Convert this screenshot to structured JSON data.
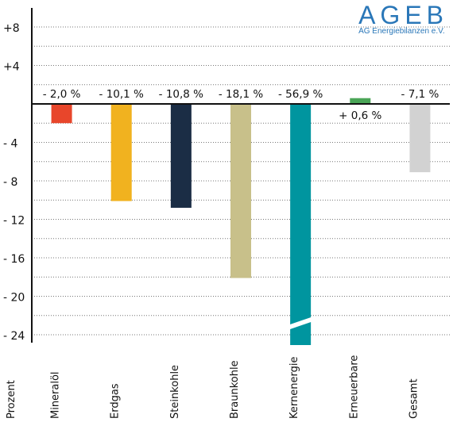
{
  "logo": {
    "main": "AGEB",
    "sub": "AG Energiebilanzen e.V."
  },
  "chart_data": {
    "type": "bar",
    "ylabel": "Prozent",
    "ylim": [
      -24,
      8
    ],
    "grid": true,
    "y_ticks": [
      {
        "value": 8,
        "label": "+8"
      },
      {
        "value": 4,
        "label": "+4"
      },
      {
        "value": -4,
        "label": "- 4"
      },
      {
        "value": -8,
        "label": "- 8"
      },
      {
        "value": -12,
        "label": "- 12"
      },
      {
        "value": -16,
        "label": "- 16"
      },
      {
        "value": -20,
        "label": "- 20"
      },
      {
        "value": -24,
        "label": "- 24"
      }
    ],
    "categories": [
      "Mineralöl",
      "Erdgas",
      "Steinkohle",
      "Braunkohle",
      "Kernenergie",
      "Erneuerbare",
      "Gesamt"
    ],
    "values": [
      -2.0,
      -10.1,
      -10.8,
      -18.1,
      -56.9,
      0.6,
      -7.1
    ],
    "value_labels": [
      "- 2,0 %",
      "- 10,1 %",
      "- 10,8 %",
      "- 18,1 %",
      "- 56,9 %",
      "+ 0,6 %",
      "- 7,1 %"
    ],
    "colors": [
      "#e8462b",
      "#f1b21f",
      "#1b2d45",
      "#c8c08a",
      "#00959f",
      "#4aa557",
      "#d2d2d2"
    ],
    "broken_axis_category": "Kernenergie"
  }
}
